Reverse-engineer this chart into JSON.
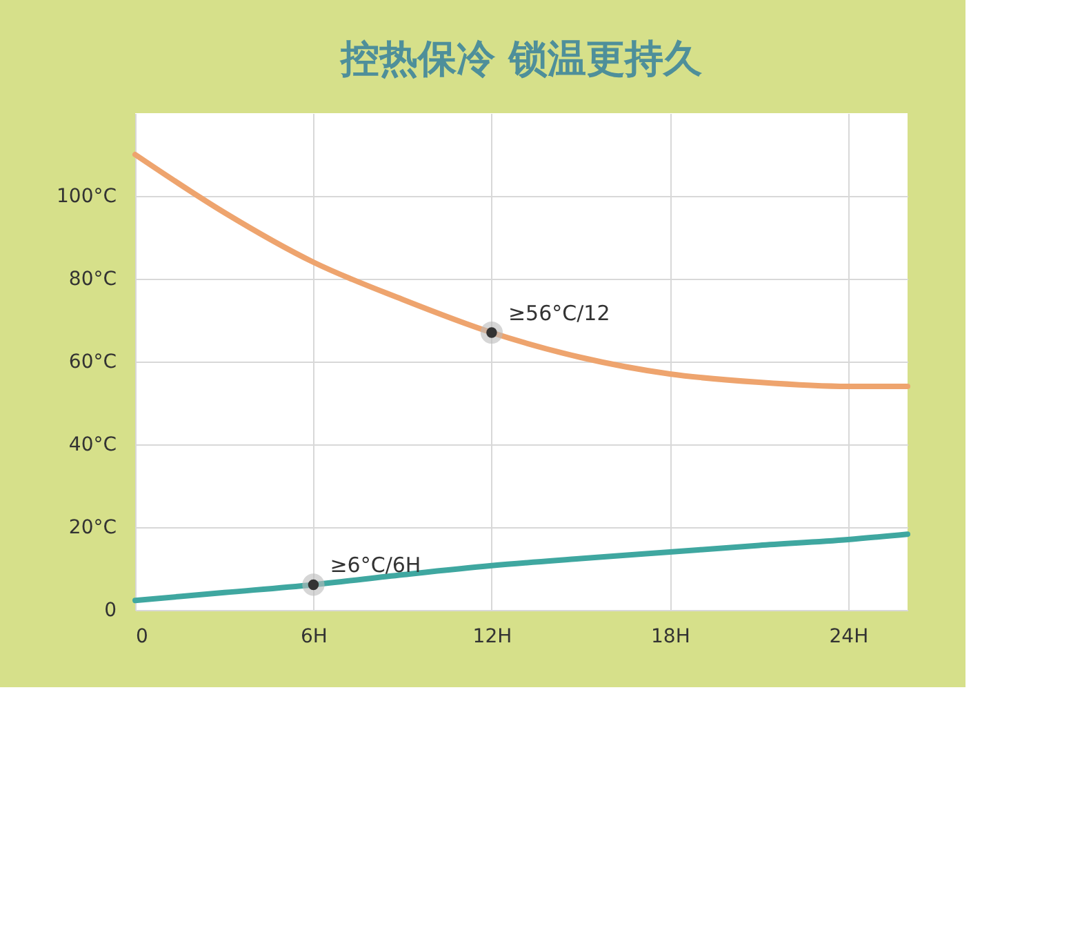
{
  "chart_data": {
    "type": "line",
    "title": "控热保冷 锁温更持久",
    "x": [
      0,
      3,
      6,
      9,
      12,
      15,
      18,
      21,
      24,
      26
    ],
    "series": [
      {
        "color": "#eea46e",
        "values": [
          110,
          96,
          84,
          75,
          67,
          61,
          57,
          55,
          54,
          54
        ]
      },
      {
        "color": "#3fa7a0",
        "values": [
          2.3,
          4.2,
          6.1,
          8.5,
          10.7,
          12.4,
          14,
          15.6,
          17,
          18.3
        ]
      }
    ],
    "xlim": [
      0,
      26
    ],
    "ylim": [
      0,
      120
    ],
    "xticks": [
      0,
      {
        "value": 6,
        "label": "6H"
      },
      {
        "value": 12,
        "label": "12H"
      },
      {
        "value": 18,
        "label": "18H"
      },
      {
        "value": 24,
        "label": "24H"
      }
    ],
    "yticks": [
      0,
      {
        "value": 20,
        "label": "20°C"
      },
      {
        "value": 40,
        "label": "40°C"
      },
      {
        "value": 60,
        "label": "60°C"
      },
      {
        "value": 80,
        "label": "80°C"
      },
      {
        "value": 100,
        "label": "100°C"
      }
    ],
    "annotations": [
      {
        "text": "≥56°C/12",
        "x": 12,
        "y": 67
      },
      {
        "text": "≥6°C/6H",
        "x": 6,
        "y": 6.1
      }
    ],
    "grid": true,
    "legend": false
  }
}
